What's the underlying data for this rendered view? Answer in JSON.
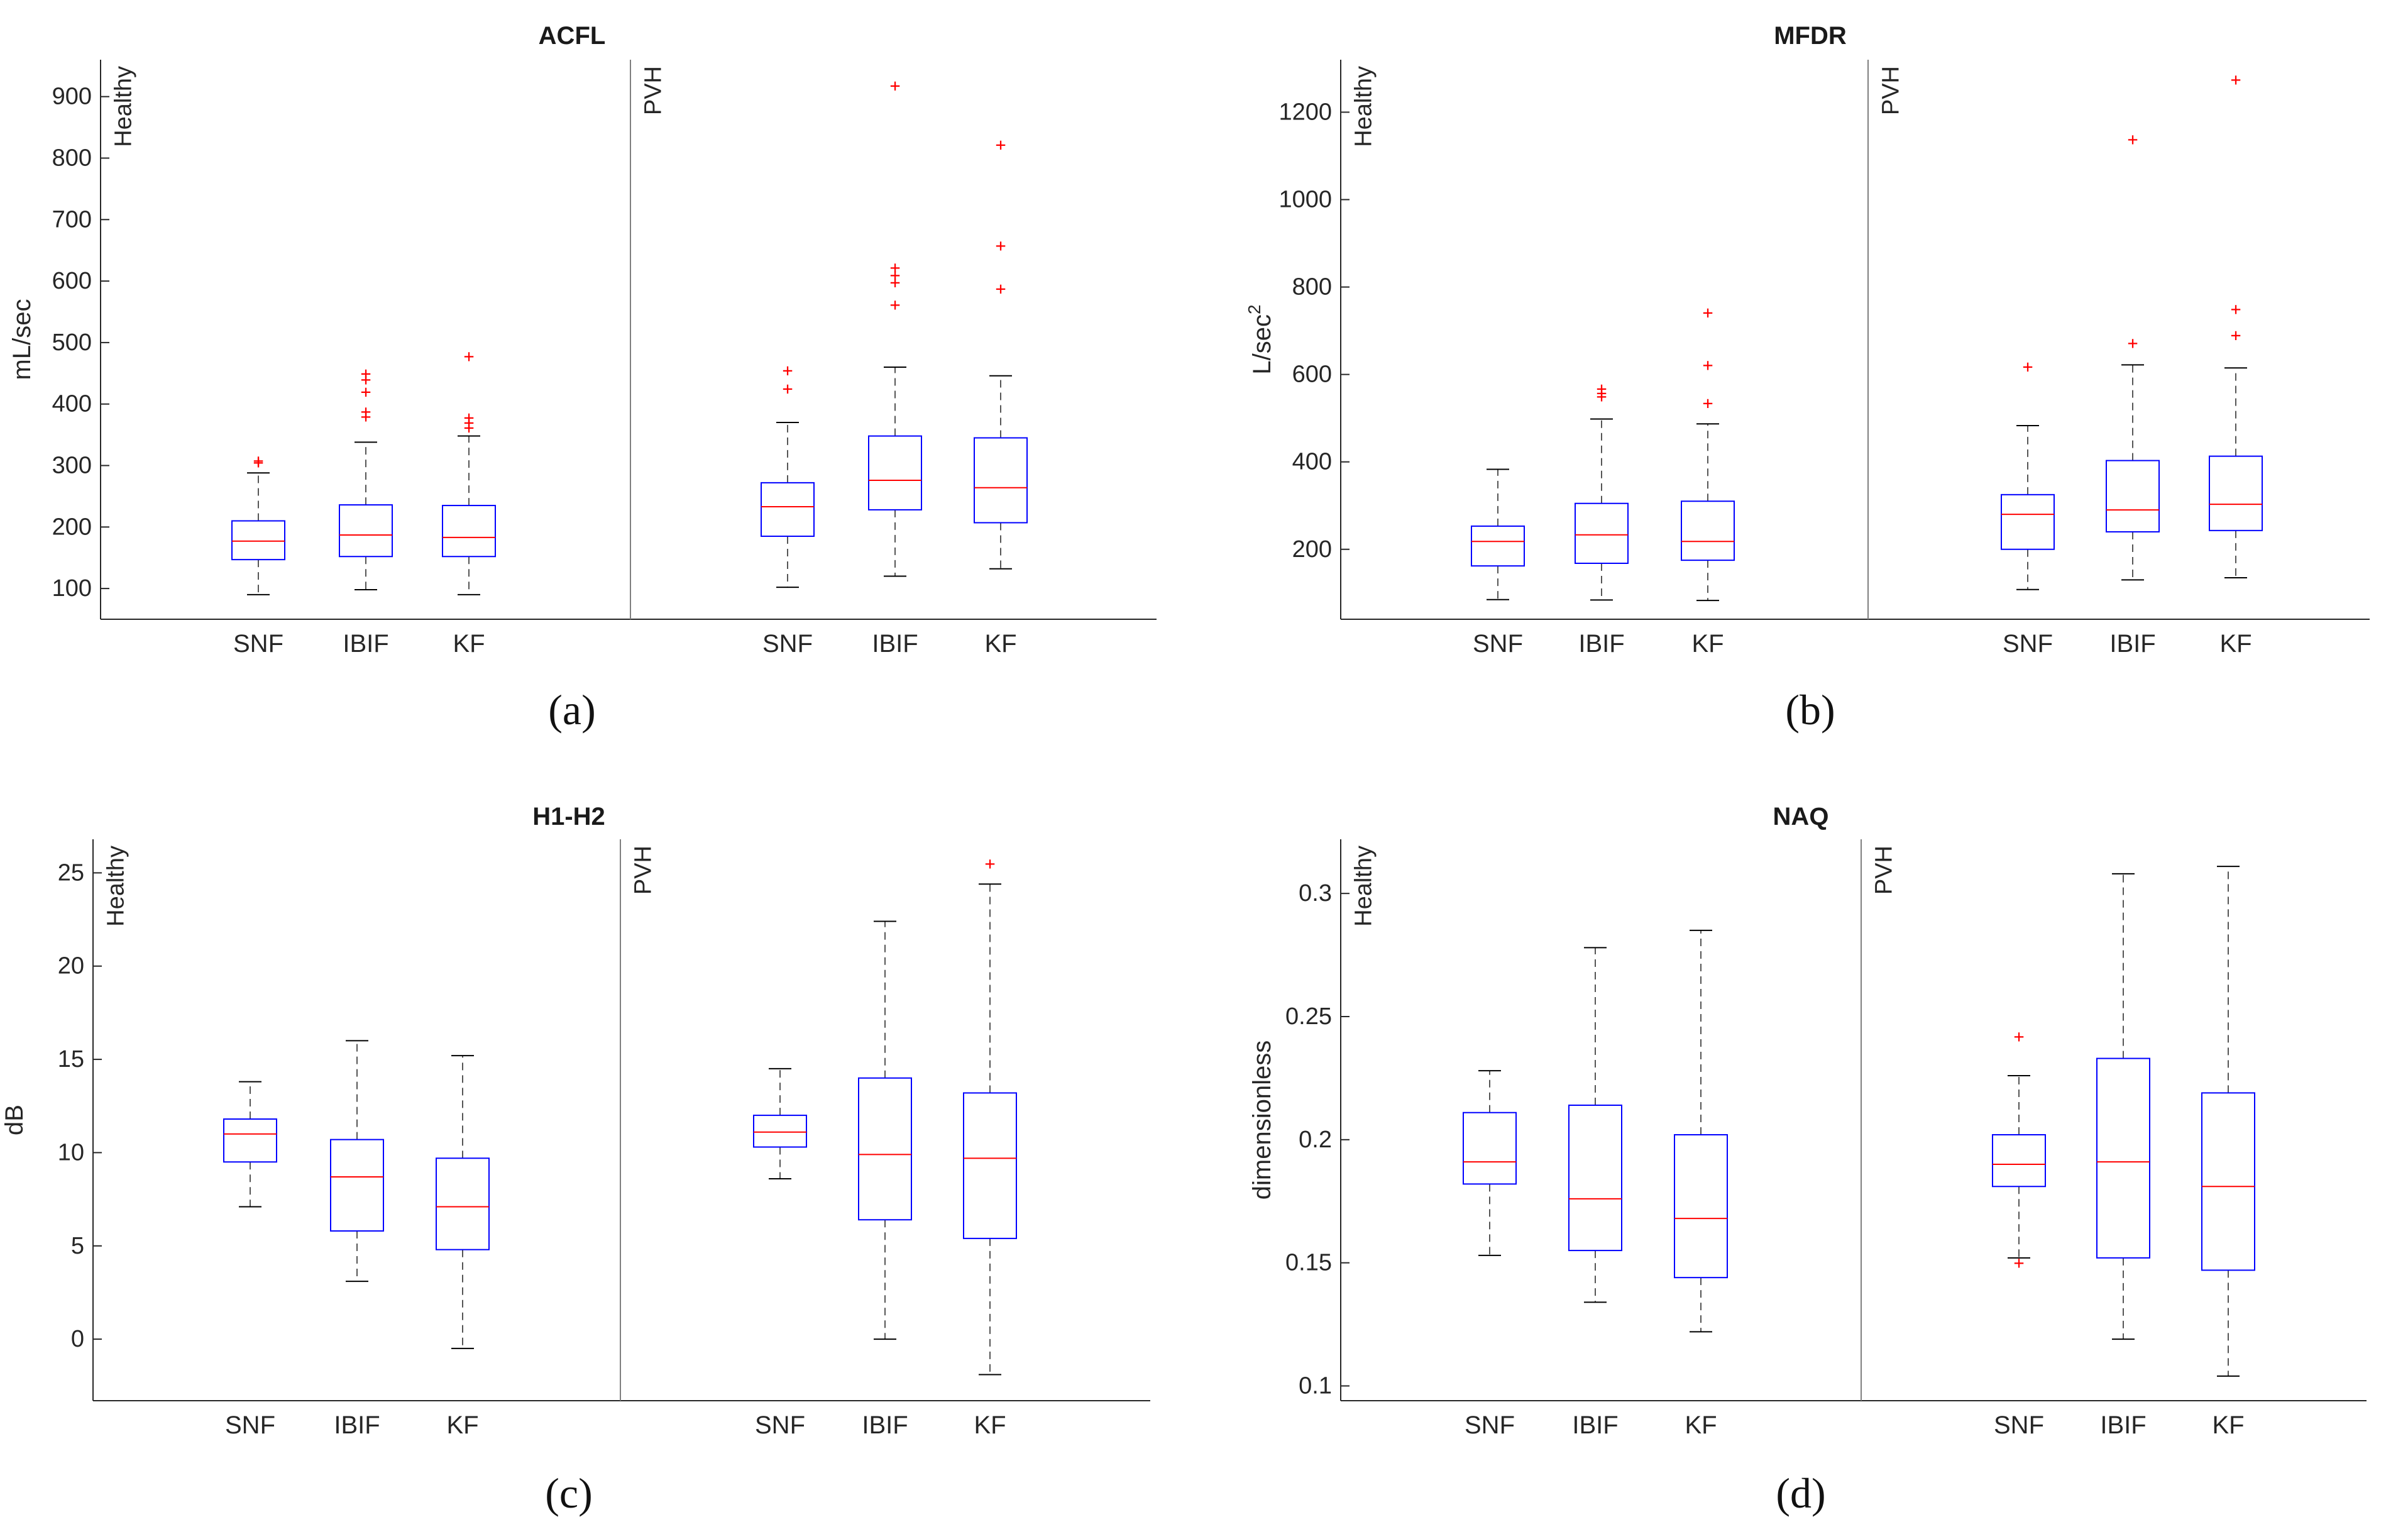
{
  "colors": {
    "box": "#0000ff",
    "median": "#ff0000",
    "whisker": "#000000",
    "outlier": "#ff0000",
    "axis": "#262626",
    "divider": "#7f7f7f"
  },
  "chart_data": [
    {
      "type": "boxplot",
      "title": "ACFL",
      "panel_label": "(a)",
      "ylabel": "mL/sec",
      "ylabel_sup": "",
      "xlabel": "",
      "ylim": [
        50,
        960
      ],
      "yticks": [
        100,
        200,
        300,
        400,
        500,
        600,
        700,
        800,
        900
      ],
      "ytick_labels": [
        "100",
        "200",
        "300",
        "400",
        "500",
        "600",
        "700",
        "800",
        "900"
      ],
      "groups": [
        {
          "name": "Healthy",
          "boxes": [
            {
              "label": "SNF",
              "whisker_low": 90,
              "q1": 147,
              "median": 177,
              "q3": 210,
              "whisker_high": 288,
              "outliers": [
                305,
                308
              ]
            },
            {
              "label": "IBIF",
              "whisker_low": 98,
              "q1": 152,
              "median": 187,
              "q3": 236,
              "whisker_high": 338,
              "outliers": [
                380,
                388,
                420,
                440,
                450
              ]
            },
            {
              "label": "KF",
              "whisker_low": 90,
              "q1": 152,
              "median": 183,
              "q3": 235,
              "whisker_high": 348,
              "outliers": [
                362,
                370,
                378,
                478
              ]
            }
          ]
        },
        {
          "name": "PVH",
          "boxes": [
            {
              "label": "SNF",
              "whisker_low": 102,
              "q1": 185,
              "median": 233,
              "q3": 272,
              "whisker_high": 370,
              "outliers": [
                425,
                455
              ]
            },
            {
              "label": "IBIF",
              "whisker_low": 120,
              "q1": 228,
              "median": 276,
              "q3": 348,
              "whisker_high": 460,
              "outliers": [
                562,
                598,
                610,
                622,
                918
              ]
            },
            {
              "label": "KF",
              "whisker_low": 132,
              "q1": 207,
              "median": 264,
              "q3": 345,
              "whisker_high": 446,
              "outliers": [
                588,
                658,
                822
              ]
            }
          ]
        }
      ]
    },
    {
      "type": "boxplot",
      "title": "MFDR",
      "panel_label": "(b)",
      "ylabel": "L/sec",
      "ylabel_sup": "2",
      "xlabel": "",
      "ylim": [
        40,
        1320
      ],
      "yticks": [
        200,
        400,
        600,
        800,
        1000,
        1200
      ],
      "ytick_labels": [
        "200",
        "400",
        "600",
        "800",
        "1000",
        "1200"
      ],
      "groups": [
        {
          "name": "Healthy",
          "boxes": [
            {
              "label": "SNF",
              "whisker_low": 85,
              "q1": 162,
              "median": 218,
              "q3": 253,
              "whisker_high": 383,
              "outliers": []
            },
            {
              "label": "IBIF",
              "whisker_low": 84,
              "q1": 168,
              "median": 233,
              "q3": 305,
              "whisker_high": 498,
              "outliers": [
                550,
                558,
                568
              ]
            },
            {
              "label": "KF",
              "whisker_low": 83,
              "q1": 175,
              "median": 218,
              "q3": 310,
              "whisker_high": 487,
              "outliers": [
                535,
                622,
                742
              ]
            }
          ]
        },
        {
          "name": "PVH",
          "boxes": [
            {
              "label": "SNF",
              "whisker_low": 108,
              "q1": 200,
              "median": 280,
              "q3": 325,
              "whisker_high": 483,
              "outliers": [
                618
              ]
            },
            {
              "label": "IBIF",
              "whisker_low": 130,
              "q1": 240,
              "median": 290,
              "q3": 403,
              "whisker_high": 622,
              "outliers": [
                672,
                1138
              ]
            },
            {
              "label": "KF",
              "whisker_low": 135,
              "q1": 243,
              "median": 303,
              "q3": 413,
              "whisker_high": 615,
              "outliers": [
                690,
                750,
                1275
              ]
            }
          ]
        }
      ]
    },
    {
      "type": "boxplot",
      "title": "H1-H2",
      "panel_label": "(c)",
      "ylabel": "dB",
      "ylabel_sup": "",
      "xlabel": "",
      "ylim": [
        -3.3,
        26.8
      ],
      "yticks": [
        0,
        5,
        10,
        15,
        20,
        25
      ],
      "ytick_labels": [
        "0",
        "5",
        "10",
        "15",
        "20",
        "25"
      ],
      "groups": [
        {
          "name": "Healthy",
          "boxes": [
            {
              "label": "SNF",
              "whisker_low": 7.1,
              "q1": 9.5,
              "median": 11.0,
              "q3": 11.8,
              "whisker_high": 13.8,
              "outliers": []
            },
            {
              "label": "IBIF",
              "whisker_low": 3.1,
              "q1": 5.8,
              "median": 8.7,
              "q3": 10.7,
              "whisker_high": 16.0,
              "outliers": []
            },
            {
              "label": "KF",
              "whisker_low": -0.5,
              "q1": 4.8,
              "median": 7.1,
              "q3": 9.7,
              "whisker_high": 15.2,
              "outliers": []
            }
          ]
        },
        {
          "name": "PVH",
          "boxes": [
            {
              "label": "SNF",
              "whisker_low": 8.6,
              "q1": 10.3,
              "median": 11.1,
              "q3": 12.0,
              "whisker_high": 14.5,
              "outliers": []
            },
            {
              "label": "IBIF",
              "whisker_low": 0.0,
              "q1": 6.4,
              "median": 9.9,
              "q3": 14.0,
              "whisker_high": 22.4,
              "outliers": []
            },
            {
              "label": "KF",
              "whisker_low": -1.9,
              "q1": 5.4,
              "median": 9.7,
              "q3": 13.2,
              "whisker_high": 24.4,
              "outliers": [
                25.5
              ]
            }
          ]
        }
      ]
    },
    {
      "type": "boxplot",
      "title": "NAQ",
      "panel_label": "(d)",
      "ylabel": "dimensionless",
      "ylabel_sup": "",
      "xlabel": "",
      "ylim": [
        0.094,
        0.322
      ],
      "yticks": [
        0.1,
        0.15,
        0.2,
        0.25,
        0.3
      ],
      "ytick_labels": [
        "0.1",
        "0.15",
        "0.2",
        "0.25",
        "0.3"
      ],
      "groups": [
        {
          "name": "Healthy",
          "boxes": [
            {
              "label": "SNF",
              "whisker_low": 0.153,
              "q1": 0.182,
              "median": 0.191,
              "q3": 0.211,
              "whisker_high": 0.228,
              "outliers": []
            },
            {
              "label": "IBIF",
              "whisker_low": 0.134,
              "q1": 0.155,
              "median": 0.176,
              "q3": 0.214,
              "whisker_high": 0.278,
              "outliers": []
            },
            {
              "label": "KF",
              "whisker_low": 0.122,
              "q1": 0.144,
              "median": 0.168,
              "q3": 0.202,
              "whisker_high": 0.285,
              "outliers": []
            }
          ]
        },
        {
          "name": "PVH",
          "boxes": [
            {
              "label": "SNF",
              "whisker_low": 0.152,
              "q1": 0.181,
              "median": 0.19,
              "q3": 0.202,
              "whisker_high": 0.226,
              "outliers": [
                0.15,
                0.242
              ]
            },
            {
              "label": "IBIF",
              "whisker_low": 0.119,
              "q1": 0.152,
              "median": 0.191,
              "q3": 0.233,
              "whisker_high": 0.308,
              "outliers": []
            },
            {
              "label": "KF",
              "whisker_low": 0.104,
              "q1": 0.147,
              "median": 0.181,
              "q3": 0.219,
              "whisker_high": 0.311,
              "outliers": []
            }
          ]
        }
      ]
    }
  ]
}
